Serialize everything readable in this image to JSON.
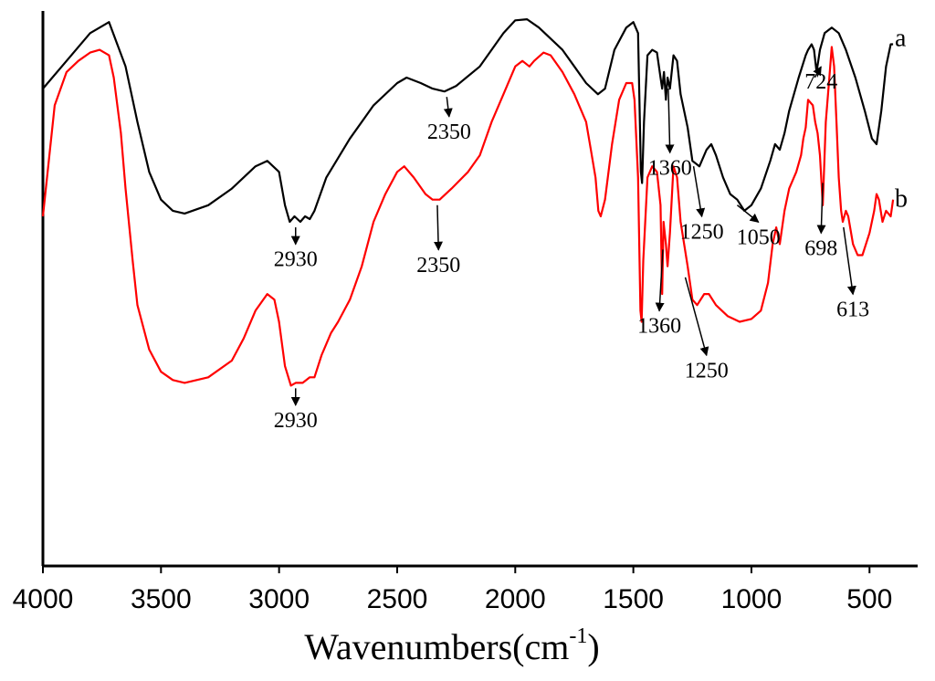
{
  "chart_data": {
    "type": "line",
    "title": "",
    "xlabel": "Wavenumbers(cm",
    "xlabel_sup": "-1",
    "xlabel_close": ")",
    "ylabel": "",
    "xlim": [
      4000,
      300
    ],
    "ylim": [
      0,
      100
    ],
    "x_ticks": [
      4000,
      3500,
      3000,
      2500,
      2000,
      1500,
      1000,
      500
    ],
    "x_tick_labels": [
      "4000",
      "3500",
      "3000",
      "2500",
      "2000",
      "1500",
      "1000",
      "500"
    ],
    "grid": false,
    "series": [
      {
        "name": "a",
        "color": "#000000",
        "points": [
          [
            4000,
            86
          ],
          [
            3900,
            91
          ],
          [
            3800,
            96
          ],
          [
            3720,
            98
          ],
          [
            3650,
            90
          ],
          [
            3600,
            80
          ],
          [
            3550,
            71
          ],
          [
            3500,
            66
          ],
          [
            3450,
            64
          ],
          [
            3400,
            63.5
          ],
          [
            3300,
            65
          ],
          [
            3200,
            68
          ],
          [
            3100,
            72
          ],
          [
            3050,
            73
          ],
          [
            3000,
            71
          ],
          [
            2975,
            65
          ],
          [
            2955,
            62
          ],
          [
            2935,
            63
          ],
          [
            2910,
            62
          ],
          [
            2890,
            63
          ],
          [
            2870,
            62.5
          ],
          [
            2850,
            64
          ],
          [
            2800,
            70
          ],
          [
            2700,
            77
          ],
          [
            2600,
            83
          ],
          [
            2500,
            87
          ],
          [
            2460,
            88
          ],
          [
            2400,
            87
          ],
          [
            2350,
            86
          ],
          [
            2300,
            85.5
          ],
          [
            2250,
            86.5
          ],
          [
            2150,
            90
          ],
          [
            2050,
            96
          ],
          [
            2000,
            98.3
          ],
          [
            1950,
            98.5
          ],
          [
            1900,
            97
          ],
          [
            1800,
            93
          ],
          [
            1750,
            90
          ],
          [
            1700,
            87
          ],
          [
            1650,
            85
          ],
          [
            1620,
            86
          ],
          [
            1580,
            93
          ],
          [
            1530,
            97
          ],
          [
            1500,
            98
          ],
          [
            1480,
            96
          ],
          [
            1468,
            71
          ],
          [
            1463,
            69
          ],
          [
            1455,
            80
          ],
          [
            1440,
            92
          ],
          [
            1420,
            93
          ],
          [
            1400,
            92.5
          ],
          [
            1385,
            88
          ],
          [
            1378,
            86
          ],
          [
            1370,
            89
          ],
          [
            1362,
            84
          ],
          [
            1355,
            88
          ],
          [
            1345,
            86
          ],
          [
            1330,
            92
          ],
          [
            1315,
            91
          ],
          [
            1300,
            85
          ],
          [
            1270,
            79
          ],
          [
            1250,
            73
          ],
          [
            1220,
            72
          ],
          [
            1190,
            75
          ],
          [
            1170,
            76
          ],
          [
            1150,
            74
          ],
          [
            1120,
            70
          ],
          [
            1090,
            67
          ],
          [
            1060,
            66
          ],
          [
            1030,
            64
          ],
          [
            1000,
            65
          ],
          [
            960,
            68
          ],
          [
            920,
            73
          ],
          [
            900,
            76
          ],
          [
            880,
            75
          ],
          [
            860,
            78
          ],
          [
            840,
            82
          ],
          [
            800,
            88
          ],
          [
            770,
            92
          ],
          [
            760,
            93
          ],
          [
            745,
            94
          ],
          [
            735,
            93
          ],
          [
            724,
            89
          ],
          [
            710,
            93
          ],
          [
            690,
            96
          ],
          [
            660,
            97
          ],
          [
            630,
            96
          ],
          [
            600,
            93
          ],
          [
            560,
            88
          ],
          [
            520,
            82
          ],
          [
            490,
            77
          ],
          [
            470,
            76
          ],
          [
            450,
            82
          ],
          [
            430,
            90
          ],
          [
            410,
            94
          ],
          [
            400,
            94
          ]
        ]
      },
      {
        "name": "b",
        "color": "#ff0000",
        "points": [
          [
            4000,
            63
          ],
          [
            3950,
            83
          ],
          [
            3900,
            89
          ],
          [
            3850,
            91
          ],
          [
            3800,
            92.5
          ],
          [
            3760,
            93
          ],
          [
            3720,
            92
          ],
          [
            3700,
            88
          ],
          [
            3670,
            78
          ],
          [
            3650,
            68
          ],
          [
            3620,
            55
          ],
          [
            3600,
            47
          ],
          [
            3550,
            39
          ],
          [
            3500,
            35
          ],
          [
            3450,
            33.5
          ],
          [
            3400,
            33
          ],
          [
            3300,
            34
          ],
          [
            3200,
            37
          ],
          [
            3150,
            41
          ],
          [
            3100,
            46
          ],
          [
            3050,
            49
          ],
          [
            3020,
            48
          ],
          [
            3000,
            44
          ],
          [
            2975,
            36
          ],
          [
            2950,
            32.5
          ],
          [
            2930,
            33
          ],
          [
            2900,
            33
          ],
          [
            2870,
            34
          ],
          [
            2850,
            34
          ],
          [
            2820,
            38
          ],
          [
            2780,
            42
          ],
          [
            2750,
            44
          ],
          [
            2700,
            48
          ],
          [
            2650,
            54
          ],
          [
            2600,
            62
          ],
          [
            2550,
            67
          ],
          [
            2500,
            71
          ],
          [
            2470,
            72
          ],
          [
            2430,
            70
          ],
          [
            2380,
            67
          ],
          [
            2350,
            66
          ],
          [
            2320,
            66
          ],
          [
            2270,
            68
          ],
          [
            2200,
            71
          ],
          [
            2150,
            74
          ],
          [
            2100,
            80
          ],
          [
            2050,
            85
          ],
          [
            2000,
            90
          ],
          [
            1970,
            91
          ],
          [
            1940,
            90
          ],
          [
            1920,
            91
          ],
          [
            1880,
            92.5
          ],
          [
            1850,
            92
          ],
          [
            1800,
            89
          ],
          [
            1750,
            85
          ],
          [
            1700,
            80
          ],
          [
            1680,
            75
          ],
          [
            1660,
            70
          ],
          [
            1648,
            64
          ],
          [
            1638,
            63
          ],
          [
            1620,
            66
          ],
          [
            1590,
            76
          ],
          [
            1560,
            84
          ],
          [
            1530,
            87
          ],
          [
            1505,
            87
          ],
          [
            1495,
            84
          ],
          [
            1480,
            70
          ],
          [
            1470,
            46
          ],
          [
            1465,
            44
          ],
          [
            1458,
            55
          ],
          [
            1440,
            70
          ],
          [
            1420,
            72
          ],
          [
            1400,
            71
          ],
          [
            1385,
            65
          ],
          [
            1378,
            49
          ],
          [
            1372,
            62
          ],
          [
            1362,
            58
          ],
          [
            1355,
            54
          ],
          [
            1345,
            60
          ],
          [
            1330,
            72
          ],
          [
            1315,
            70
          ],
          [
            1300,
            62
          ],
          [
            1270,
            54
          ],
          [
            1250,
            48
          ],
          [
            1230,
            47
          ],
          [
            1200,
            49
          ],
          [
            1180,
            49
          ],
          [
            1150,
            47
          ],
          [
            1100,
            45
          ],
          [
            1050,
            44
          ],
          [
            1000,
            44.5
          ],
          [
            960,
            46
          ],
          [
            930,
            51
          ],
          [
            910,
            58
          ],
          [
            895,
            61
          ],
          [
            880,
            58
          ],
          [
            860,
            64
          ],
          [
            840,
            68
          ],
          [
            810,
            71
          ],
          [
            790,
            74
          ],
          [
            780,
            77
          ],
          [
            770,
            79
          ],
          [
            760,
            84
          ],
          [
            740,
            83
          ],
          [
            730,
            80
          ],
          [
            720,
            78
          ],
          [
            710,
            74
          ],
          [
            698,
            65
          ],
          [
            685,
            80
          ],
          [
            670,
            88
          ],
          [
            660,
            93.5
          ],
          [
            650,
            90
          ],
          [
            640,
            80
          ],
          [
            630,
            70
          ],
          [
            620,
            64
          ],
          [
            613,
            62
          ],
          [
            600,
            64
          ],
          [
            590,
            63
          ],
          [
            570,
            58
          ],
          [
            550,
            56
          ],
          [
            530,
            56
          ],
          [
            500,
            60
          ],
          [
            480,
            64
          ],
          [
            470,
            67
          ],
          [
            460,
            66
          ],
          [
            445,
            62
          ],
          [
            430,
            64
          ],
          [
            410,
            63
          ],
          [
            400,
            66
          ]
        ]
      }
    ],
    "series_labels": [
      {
        "text": "a",
        "value": 95
      },
      {
        "text": "b",
        "value": 66
      }
    ],
    "annotations": [
      {
        "text": "2930",
        "series": "a",
        "tip_x": 2930,
        "tip_y": 62,
        "label_x": 2930,
        "label_y": 54
      },
      {
        "text": "2350",
        "series": "a",
        "tip_x": 2290,
        "tip_y": 85.5,
        "label_x": 2280,
        "label_y": 77
      },
      {
        "text": "1360",
        "series": "a",
        "tip_x": 1352,
        "tip_y": 87,
        "label_x": 1345,
        "label_y": 70.5
      },
      {
        "text": "1250",
        "series": "a",
        "tip_x": 1245,
        "tip_y": 73,
        "label_x": 1210,
        "label_y": 59
      },
      {
        "text": "1050",
        "series": "a",
        "tip_x": 1060,
        "tip_y": 66,
        "label_x": 970,
        "label_y": 58
      },
      {
        "text": "724",
        "series": "a",
        "tip_x": 732,
        "tip_y": 89,
        "label_x": 705,
        "label_y": 86
      },
      {
        "text": "2930",
        "series": "b",
        "tip_x": 2930,
        "tip_y": 33,
        "label_x": 2930,
        "label_y": 25
      },
      {
        "text": "2350",
        "series": "b",
        "tip_x": 2330,
        "tip_y": 66,
        "label_x": 2325,
        "label_y": 53
      },
      {
        "text": "1360",
        "series": "b",
        "tip_x": 1375,
        "tip_y": 58,
        "label_x": 1390,
        "label_y": 42
      },
      {
        "text": "1250",
        "series": "b",
        "tip_x": 1280,
        "tip_y": 53,
        "label_x": 1190,
        "label_y": 34
      },
      {
        "text": "698",
        "series": "b",
        "tip_x": 698,
        "tip_y": 70,
        "label_x": 705,
        "label_y": 56
      },
      {
        "text": "613",
        "series": "b",
        "tip_x": 610,
        "tip_y": 62,
        "label_x": 570,
        "label_y": 45
      }
    ]
  }
}
